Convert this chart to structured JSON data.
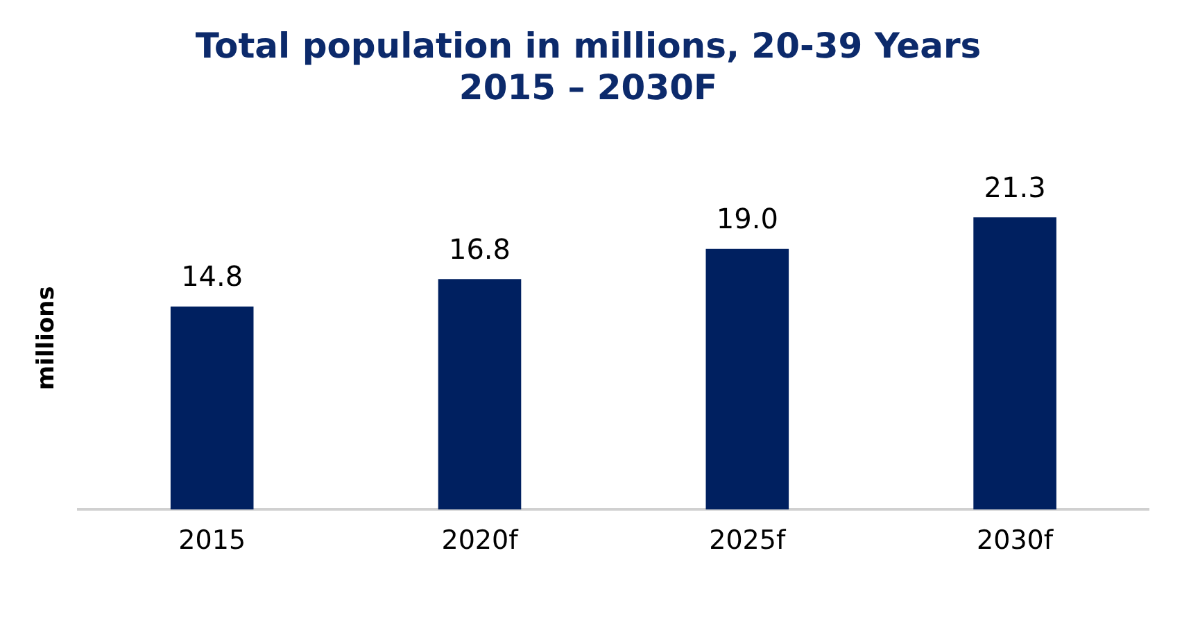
{
  "chart_data": {
    "type": "bar",
    "title": "Total population in millions, 20-39 Years\n2015 – 2030F",
    "ylabel": "millions",
    "categories": [
      "2015",
      "2020f",
      "2025f",
      "2030f"
    ],
    "values": [
      14.8,
      16.8,
      19.0,
      21.3
    ],
    "value_labels": [
      "14.8",
      "16.8",
      "19.0",
      "21.3"
    ],
    "color": "#002060",
    "tick_labels": "x",
    "grid": false,
    "legend": false
  }
}
